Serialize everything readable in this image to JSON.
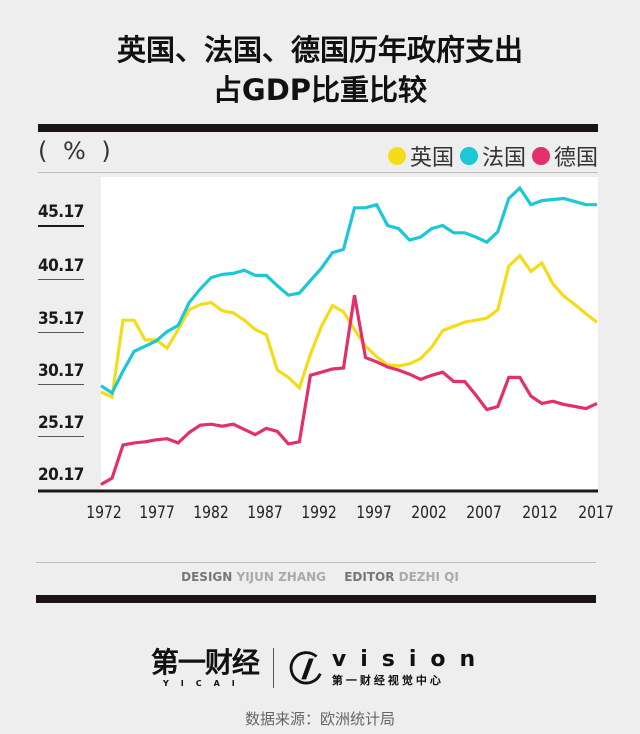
{
  "title": {
    "line1": "英国、法国、德国历年政府支出",
    "line2": "占GDP比重比较"
  },
  "unit_label": "( % )",
  "legend": [
    {
      "label": "英国",
      "color": "#f5dc1a"
    },
    {
      "label": "法国",
      "color": "#1cc7d6"
    },
    {
      "label": "德国",
      "color": "#e32f6b"
    }
  ],
  "y_ticks": [
    "45.17",
    "40.17",
    "35.17",
    "30.17",
    "25.17",
    "20.17"
  ],
  "x_ticks": [
    "1972",
    "1977",
    "1982",
    "1987",
    "1992",
    "1997",
    "2002",
    "2007",
    "2012",
    "2017"
  ],
  "credits": {
    "design_key": "DESIGN",
    "design_value": "YIJUN ZHANG",
    "editor_key": "EDITOR",
    "editor_value": "DEZHI QI"
  },
  "logos": {
    "yicai_cn": "第一财经",
    "yicai_en": "YICAI",
    "vision_en": "vision",
    "vision_cn": "第一财经视觉中心"
  },
  "source": "数据来源：欧洲统计局",
  "chart_data": {
    "type": "line",
    "title": "英国、法国、德国历年政府支出占GDP比重比较",
    "xlabel": "",
    "ylabel": "(%)",
    "ylim": [
      20.17,
      50.2
    ],
    "xlim": [
      1972,
      2017
    ],
    "grid": false,
    "legend_position": "top-right",
    "y_tick_values": [
      20.17,
      25.17,
      30.17,
      35.17,
      40.17,
      45.17
    ],
    "x": [
      1972,
      1973,
      1974,
      1975,
      1976,
      1977,
      1978,
      1979,
      1980,
      1981,
      1982,
      1983,
      1984,
      1985,
      1986,
      1987,
      1988,
      1989,
      1990,
      1991,
      1992,
      1993,
      1994,
      1995,
      1996,
      1997,
      1998,
      1999,
      2000,
      2001,
      2002,
      2003,
      2004,
      2005,
      2006,
      2007,
      2008,
      2009,
      2010,
      2011,
      2012,
      2013,
      2014,
      2015,
      2016,
      2017
    ],
    "series": [
      {
        "name": "英国",
        "color": "#f5dc1a",
        "values": [
          29.6,
          29.1,
          36.5,
          36.5,
          34.6,
          34.6,
          33.8,
          35.6,
          37.5,
          38.0,
          38.2,
          37.4,
          37.2,
          36.5,
          35.6,
          35.1,
          31.7,
          31.0,
          30.0,
          33.2,
          35.9,
          37.9,
          37.3,
          35.6,
          34.0,
          33.0,
          32.2,
          32.1,
          32.3,
          32.8,
          33.9,
          35.5,
          35.9,
          36.3,
          36.5,
          36.7,
          37.5,
          41.7,
          42.7,
          41.2,
          42.0,
          40.0,
          38.8,
          38.0,
          37.1,
          36.3
        ]
      },
      {
        "name": "法国",
        "color": "#1cc7d6",
        "values": [
          30.2,
          29.5,
          31.6,
          33.5,
          34.0,
          34.5,
          35.4,
          36.0,
          38.2,
          39.5,
          40.6,
          40.9,
          41.0,
          41.3,
          40.8,
          40.8,
          39.8,
          38.9,
          39.1,
          40.3,
          41.5,
          43.0,
          43.3,
          47.3,
          47.3,
          47.6,
          45.6,
          45.3,
          44.2,
          44.5,
          45.3,
          45.6,
          44.9,
          44.9,
          44.5,
          44.0,
          45.0,
          48.2,
          49.2,
          47.6,
          48.0,
          48.1,
          48.2,
          47.9,
          47.6,
          47.6
        ]
      },
      {
        "name": "德国",
        "color": "#e32f6b",
        "values": [
          20.7,
          21.3,
          24.5,
          24.7,
          24.8,
          25.0,
          25.1,
          24.7,
          25.7,
          26.4,
          26.5,
          26.3,
          26.5,
          26.0,
          25.5,
          26.1,
          25.8,
          24.6,
          24.8,
          31.2,
          31.5,
          31.8,
          31.9,
          38.9,
          32.9,
          32.5,
          32.0,
          31.7,
          31.3,
          30.8,
          31.2,
          31.5,
          30.6,
          30.6,
          29.3,
          27.9,
          28.2,
          31.0,
          31.0,
          29.2,
          28.5,
          28.7,
          28.4,
          28.2,
          28.0,
          28.5
        ]
      }
    ]
  }
}
